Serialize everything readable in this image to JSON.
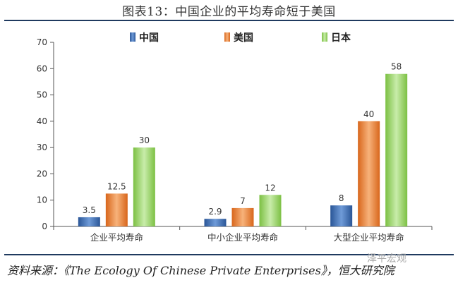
{
  "title": "图表13：中国企业的平均寿命短于美国",
  "source": "资料来源：《The Ecology Of Chinese Private Enterprises》，恒大研究院",
  "watermark": "泽平宏观",
  "colors": {
    "china": "#3f6fb5",
    "usa": "#e8792e",
    "japan": "#8fce55",
    "axis": "#555555"
  },
  "chart_data": {
    "type": "bar",
    "title": "图表13：中国企业的平均寿命短于美国",
    "categories": [
      "企业平均寿命",
      "中小企业平均寿命",
      "大型企业平均寿命"
    ],
    "series": [
      {
        "name": "中国",
        "values": [
          3.5,
          2.9,
          8
        ],
        "labels": [
          "3.5",
          "2.9",
          "8"
        ]
      },
      {
        "name": "美国",
        "values": [
          12.5,
          7,
          40
        ],
        "labels": [
          "12.5",
          "7",
          "40"
        ]
      },
      {
        "name": "日本",
        "values": [
          30,
          12,
          58
        ],
        "labels": [
          "30",
          "12",
          "58"
        ]
      }
    ],
    "ylim": [
      0,
      70
    ],
    "yticks": [
      0,
      10,
      20,
      30,
      40,
      50,
      60,
      70
    ],
    "xlabel": "",
    "ylabel": "",
    "legend_position": "top-center",
    "grid": false
  }
}
